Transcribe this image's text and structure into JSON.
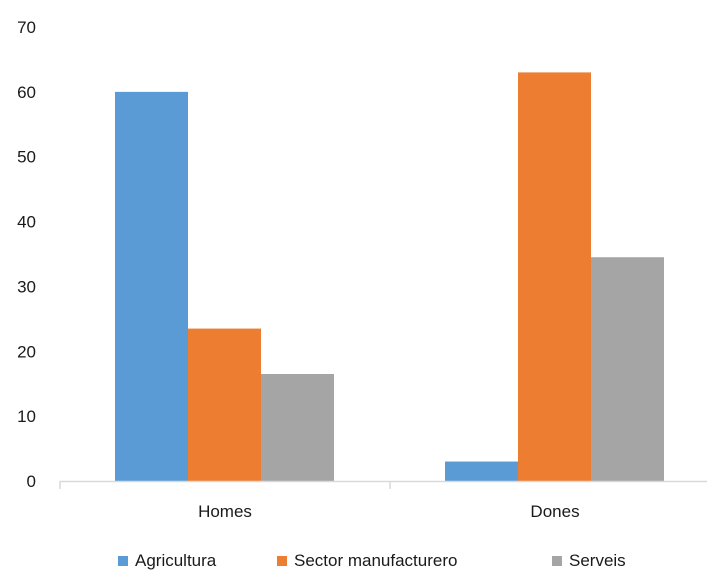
{
  "chart_data": {
    "type": "bar",
    "categories": [
      "Homes",
      "Dones"
    ],
    "series": [
      {
        "name": "Agricultura",
        "values": [
          60,
          3
        ],
        "color": "#5b9bd5"
      },
      {
        "name": "Sector manufacturero",
        "values": [
          23.5,
          63
        ],
        "color": "#ed7d31"
      },
      {
        "name": "Serveis",
        "values": [
          16.5,
          34.5
        ],
        "color": "#a5a5a5"
      }
    ],
    "ylim": [
      0,
      70
    ],
    "yticks": [
      0,
      10,
      20,
      30,
      40,
      50,
      60,
      70
    ],
    "grid": false,
    "legend_position": "bottom",
    "axis_color": "#d9d9d9"
  }
}
